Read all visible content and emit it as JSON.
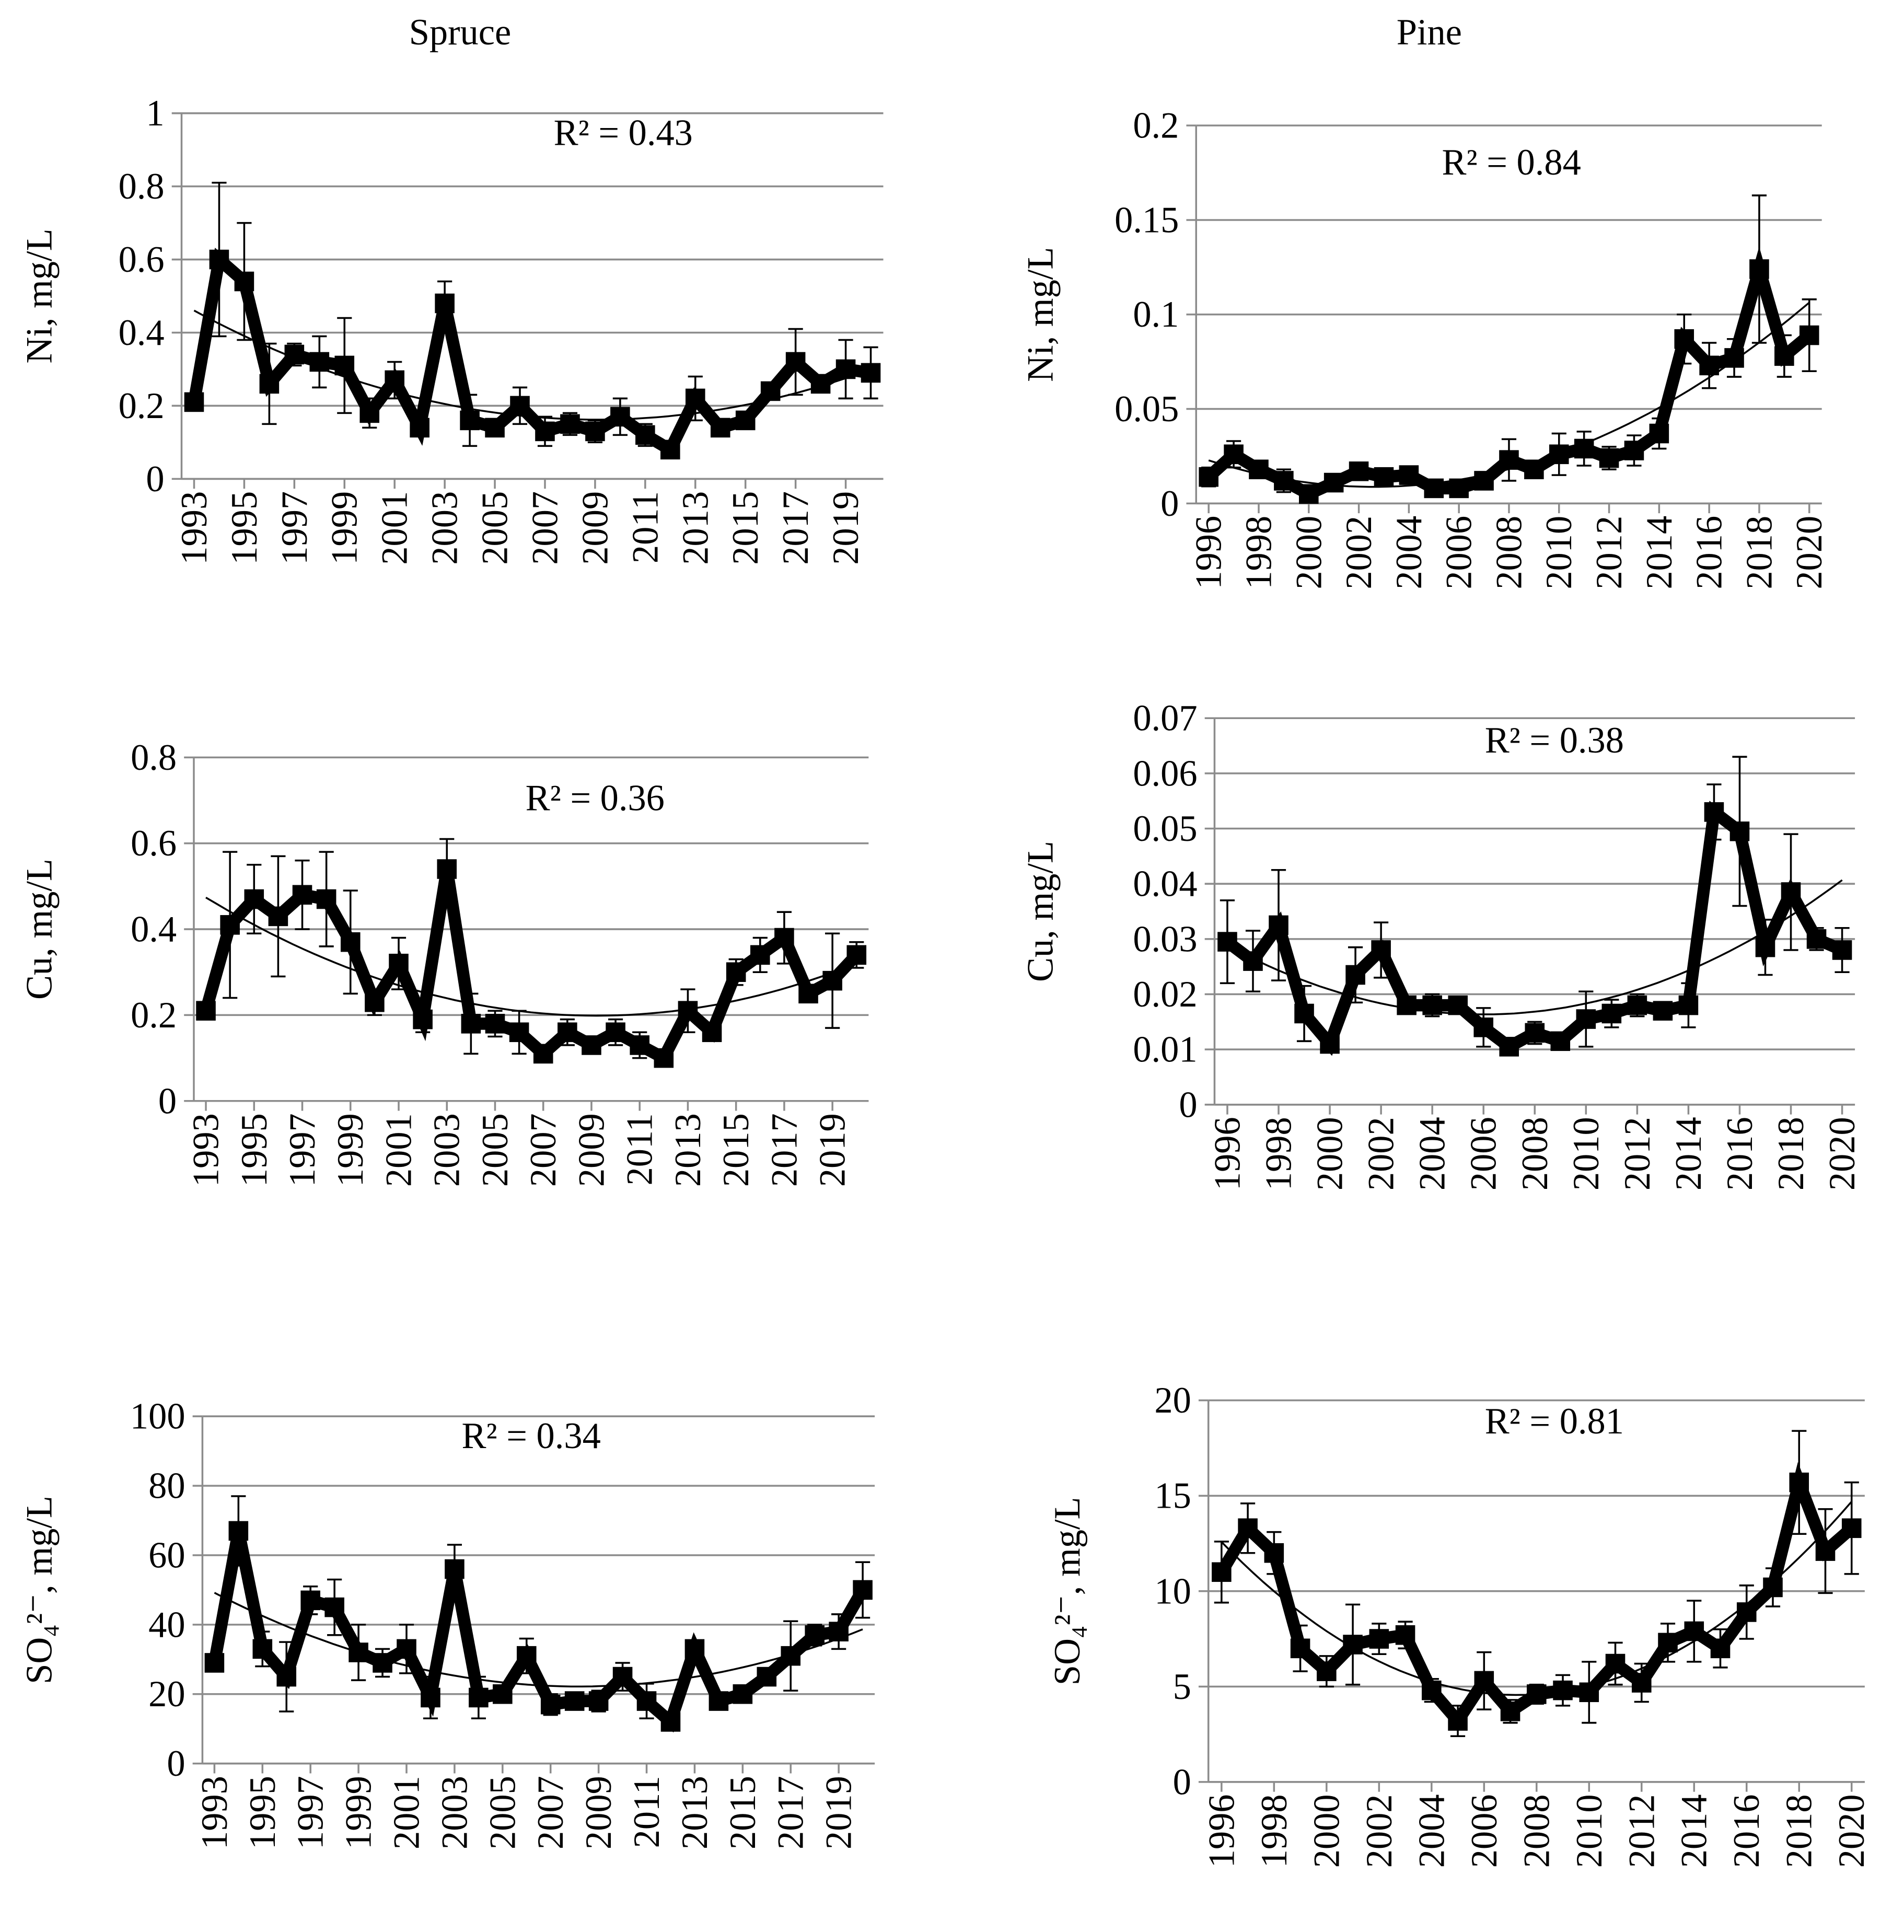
{
  "chart_data": [
    {
      "type": "line",
      "title": "Spruce",
      "y_label": "Ni, mg/L",
      "annotation": "R² = 0.43",
      "x": [
        1993,
        1994,
        1995,
        1996,
        1997,
        1998,
        1999,
        2000,
        2001,
        2002,
        2003,
        2004,
        2005,
        2006,
        2007,
        2008,
        2009,
        2010,
        2011,
        2012,
        2013,
        2014,
        2015,
        2016,
        2017,
        2018,
        2019,
        2020
      ],
      "xlim": [
        1992.5,
        2020.5
      ],
      "xticks": [
        1993,
        1995,
        1997,
        1999,
        2001,
        2003,
        2005,
        2007,
        2009,
        2011,
        2013,
        2015,
        2017,
        2019
      ],
      "ylim": [
        0,
        1
      ],
      "yticks": [
        0,
        0.2,
        0.4,
        0.6,
        0.8,
        1
      ],
      "grid": true,
      "trendline": true,
      "series": [
        {
          "color": "#000000",
          "values": [
            0.21,
            0.6,
            0.54,
            0.26,
            0.34,
            0.32,
            0.31,
            0.18,
            0.27,
            0.14,
            0.48,
            0.16,
            0.14,
            0.2,
            0.13,
            0.15,
            0.13,
            0.17,
            0.12,
            0.08,
            0.22,
            0.14,
            0.16,
            0.24,
            0.32,
            0.26,
            0.3,
            0.29
          ],
          "errors": [
            0.01,
            0.21,
            0.16,
            0.11,
            0.03,
            0.07,
            0.13,
            0.04,
            0.05,
            0.02,
            0.06,
            0.07,
            0.02,
            0.05,
            0.04,
            0.03,
            0.03,
            0.05,
            0.03,
            0.01,
            0.06,
            0.01,
            0.02,
            0.02,
            0.09,
            0.02,
            0.08,
            0.07
          ]
        }
      ]
    },
    {
      "type": "line",
      "title": "Pine",
      "y_label": "Ni, mg/L",
      "annotation": "R² = 0.84",
      "x": [
        1996,
        1997,
        1998,
        1999,
        2000,
        2001,
        2002,
        2003,
        2004,
        2005,
        2006,
        2007,
        2008,
        2009,
        2010,
        2011,
        2012,
        2013,
        2014,
        2015,
        2016,
        2017,
        2018,
        2019,
        2020
      ],
      "xlim": [
        1995.5,
        2020.5
      ],
      "xticks": [
        1996,
        1998,
        2000,
        2002,
        2004,
        2006,
        2008,
        2010,
        2012,
        2014,
        2016,
        2018,
        2020
      ],
      "ylim": [
        0,
        0.2
      ],
      "yticks": [
        0,
        0.05,
        0.1,
        0.15,
        0.2
      ],
      "grid": true,
      "trendline": true,
      "series": [
        {
          "color": "#000000",
          "values": [
            0.014,
            0.026,
            0.018,
            0.012,
            0.005,
            0.011,
            0.017,
            0.014,
            0.015,
            0.008,
            0.008,
            0.012,
            0.023,
            0.018,
            0.026,
            0.029,
            0.024,
            0.028,
            0.037,
            0.087,
            0.073,
            0.077,
            0.124,
            0.078,
            0.089
          ],
          "errors": [
            0.005,
            0.007,
            0.003,
            0.006,
            0.002,
            0.003,
            0.003,
            0.002,
            0.002,
            0.002,
            0.002,
            0.003,
            0.011,
            0.003,
            0.011,
            0.009,
            0.006,
            0.008,
            0.008,
            0.013,
            0.012,
            0.01,
            0.039,
            0.011,
            0.019
          ]
        }
      ]
    },
    {
      "type": "line",
      "y_label": "Cu, mg/L",
      "annotation": "R² = 0.36",
      "x": [
        1993,
        1994,
        1995,
        1996,
        1997,
        1998,
        1999,
        2000,
        2001,
        2002,
        2003,
        2004,
        2005,
        2006,
        2007,
        2008,
        2009,
        2010,
        2011,
        2012,
        2013,
        2014,
        2015,
        2016,
        2017,
        2018,
        2019,
        2020
      ],
      "xlim": [
        1992.5,
        2020.5
      ],
      "xticks": [
        1993,
        1995,
        1997,
        1999,
        2001,
        2003,
        2005,
        2007,
        2009,
        2011,
        2013,
        2015,
        2017,
        2019
      ],
      "ylim": [
        0,
        0.8
      ],
      "yticks": [
        0,
        0.2,
        0.4,
        0.6,
        0.8
      ],
      "grid": true,
      "trendline": true,
      "series": [
        {
          "color": "#000000",
          "values": [
            0.21,
            0.41,
            0.47,
            0.43,
            0.48,
            0.47,
            0.37,
            0.23,
            0.32,
            0.19,
            0.54,
            0.18,
            0.18,
            0.16,
            0.11,
            0.16,
            0.13,
            0.16,
            0.13,
            0.1,
            0.21,
            0.16,
            0.3,
            0.34,
            0.38,
            0.25,
            0.28,
            0.34
          ],
          "errors": [
            0.01,
            0.17,
            0.08,
            0.14,
            0.08,
            0.11,
            0.12,
            0.03,
            0.06,
            0.03,
            0.07,
            0.07,
            0.03,
            0.05,
            0.02,
            0.03,
            0.02,
            0.03,
            0.03,
            0.01,
            0.05,
            0.02,
            0.03,
            0.04,
            0.06,
            0.02,
            0.11,
            0.03
          ]
        }
      ]
    },
    {
      "type": "line",
      "y_label": "Cu, mg/L",
      "annotation": "R² = 0.38",
      "x": [
        1996,
        1997,
        1998,
        1999,
        2000,
        2001,
        2002,
        2003,
        2004,
        2005,
        2006,
        2007,
        2008,
        2009,
        2010,
        2011,
        2012,
        2013,
        2014,
        2015,
        2016,
        2017,
        2018,
        2019,
        2020
      ],
      "xlim": [
        1995.5,
        2020.5
      ],
      "xticks": [
        1996,
        1998,
        2000,
        2002,
        2004,
        2006,
        2008,
        2010,
        2012,
        2014,
        2016,
        2018,
        2020
      ],
      "ylim": [
        0,
        0.07
      ],
      "yticks": [
        0,
        0.01,
        0.02,
        0.03,
        0.04,
        0.05,
        0.06,
        0.07
      ],
      "grid": true,
      "trendline": true,
      "series": [
        {
          "color": "#000000",
          "values": [
            0.0295,
            0.026,
            0.0325,
            0.0165,
            0.011,
            0.0235,
            0.028,
            0.018,
            0.018,
            0.018,
            0.014,
            0.0105,
            0.013,
            0.0115,
            0.0155,
            0.0165,
            0.018,
            0.017,
            0.018,
            0.053,
            0.0495,
            0.0285,
            0.0385,
            0.03,
            0.028
          ],
          "errors": [
            0.0075,
            0.0055,
            0.01,
            0.005,
            0.0015,
            0.005,
            0.005,
            0.001,
            0.002,
            0.001,
            0.0035,
            0.001,
            0.002,
            0.0015,
            0.005,
            0.0025,
            0.002,
            0.0015,
            0.004,
            0.005,
            0.0135,
            0.005,
            0.0105,
            0.002,
            0.004
          ]
        }
      ]
    },
    {
      "type": "line",
      "y_label": "SO₄²⁻, mg/L",
      "annotation": "R² = 0.34",
      "x": [
        1993,
        1994,
        1995,
        1996,
        1997,
        1998,
        1999,
        2000,
        2001,
        2002,
        2003,
        2004,
        2005,
        2006,
        2007,
        2008,
        2009,
        2010,
        2011,
        2012,
        2013,
        2014,
        2015,
        2016,
        2017,
        2018,
        2019,
        2020
      ],
      "xlim": [
        1992.5,
        2020.5
      ],
      "xticks": [
        1993,
        1995,
        1997,
        1999,
        2001,
        2003,
        2005,
        2007,
        2009,
        2011,
        2013,
        2015,
        2017,
        2019
      ],
      "ylim": [
        0,
        100
      ],
      "yticks": [
        0,
        20,
        40,
        60,
        80,
        100
      ],
      "grid": true,
      "trendline": true,
      "series": [
        {
          "color": "#000000",
          "values": [
            29,
            67,
            33,
            25,
            47,
            45,
            32,
            29,
            33,
            19,
            56,
            19,
            20,
            31,
            17,
            18,
            18,
            25,
            18,
            12,
            33,
            18,
            20,
            25,
            31,
            37,
            38,
            50
          ],
          "errors": [
            1,
            10,
            5,
            10,
            4,
            8,
            8,
            4,
            7,
            6,
            7,
            6,
            2,
            5,
            3,
            2,
            3,
            4,
            5,
            1,
            2,
            1,
            2,
            2,
            10,
            3,
            5,
            8
          ]
        }
      ]
    },
    {
      "type": "line",
      "y_label": "SO₄²⁻, mg/L",
      "annotation": "R² = 0.81",
      "x": [
        1996,
        1997,
        1998,
        1999,
        2000,
        2001,
        2002,
        2003,
        2004,
        2005,
        2006,
        2007,
        2008,
        2009,
        2010,
        2011,
        2012,
        2013,
        2014,
        2015,
        2016,
        2017,
        2018,
        2019,
        2020
      ],
      "xlim": [
        1995.5,
        2020.5
      ],
      "xticks": [
        1996,
        1998,
        2000,
        2002,
        2004,
        2006,
        2008,
        2010,
        2012,
        2014,
        2016,
        2018,
        2020
      ],
      "ylim": [
        0,
        20
      ],
      "yticks": [
        0,
        5,
        10,
        15,
        20
      ],
      "grid": true,
      "trendline": true,
      "series": [
        {
          "color": "#000000",
          "values": [
            11,
            13.3,
            12,
            7,
            5.8,
            7.2,
            7.5,
            7.7,
            4.8,
            3.2,
            5.3,
            3.7,
            4.6,
            4.8,
            4.7,
            6.2,
            5.2,
            7.3,
            7.9,
            7.0,
            8.9,
            10.2,
            15.7,
            12.1,
            13.3
          ],
          "errors": [
            1.6,
            1.3,
            1.1,
            1.2,
            0.8,
            2.1,
            0.8,
            0.7,
            0.6,
            0.8,
            1.5,
            0.6,
            0.5,
            0.8,
            1.6,
            1.1,
            1.0,
            1.0,
            1.6,
            1.0,
            1.4,
            1.0,
            2.7,
            2.2,
            2.4
          ]
        }
      ]
    }
  ]
}
